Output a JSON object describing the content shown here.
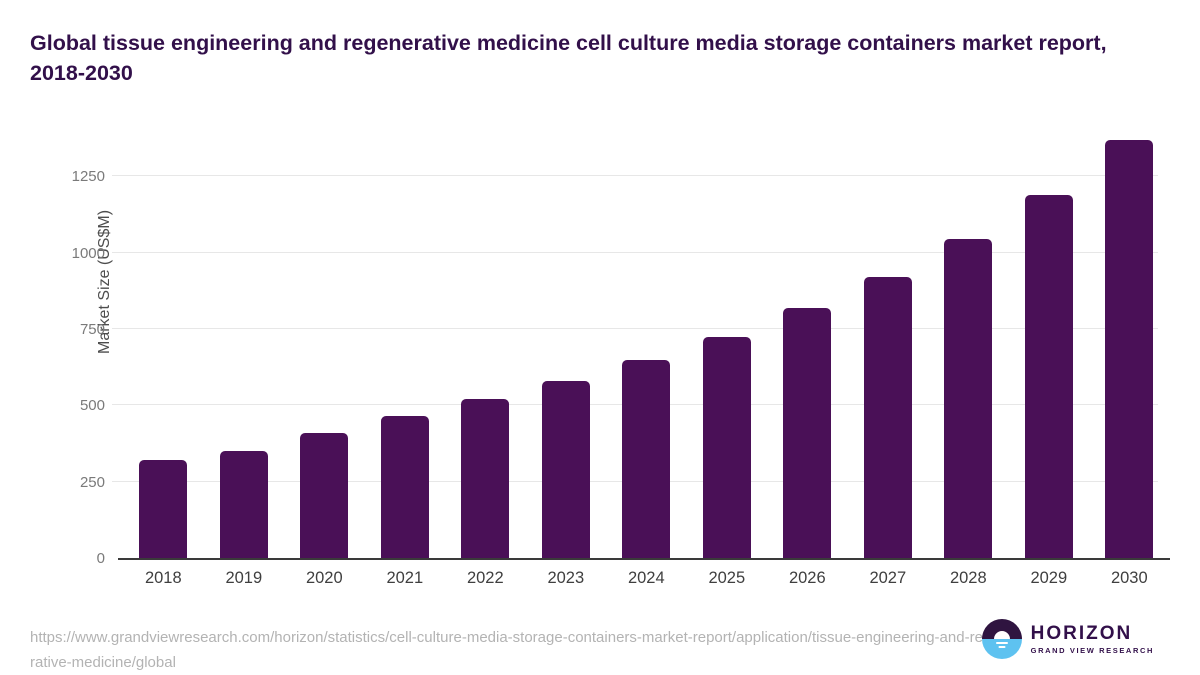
{
  "title": "Global tissue engineering and regenerative medicine cell culture media storage containers market report, 2018-2030",
  "chart_data": {
    "type": "bar",
    "title": "Global tissue engineering and regenerative medicine cell culture media storage containers market report, 2018-2030",
    "categories": [
      "2018",
      "2019",
      "2020",
      "2021",
      "2022",
      "2023",
      "2024",
      "2025",
      "2026",
      "2027",
      "2028",
      "2029",
      "2030"
    ],
    "values": [
      320,
      350,
      410,
      465,
      520,
      580,
      650,
      725,
      820,
      920,
      1045,
      1190,
      1370
    ],
    "xlabel": "",
    "ylabel": "Market Size (US$M)",
    "ylim": [
      0,
      1392
    ],
    "yticks": [
      0,
      250,
      500,
      750,
      1000,
      1250
    ],
    "grid": true,
    "legend_position": "none",
    "bar_color": "#4a1057",
    "gridline_color": "#e7e7e7",
    "axis_line_color": "#3a3a3a",
    "ytick_label_color": "#7a7a7a",
    "xtick_label_color": "#3f3f3f"
  },
  "footer": {
    "source_url": "https://www.grandviewresearch.com/horizon/statistics/cell-culture-media-storage-containers-market-report/application/tissue-engineering-and-regenerative-medicine/global",
    "logo": {
      "brand": "HORIZON",
      "subtitle": "GRAND VIEW RESEARCH",
      "icon": "horizon-sun-circle",
      "dark_color": "#2f1440",
      "blue_color": "#5ec2f0"
    }
  },
  "colors": {
    "title_text": "#32104a",
    "url_text": "#b3b3b3",
    "background": "#ffffff"
  }
}
